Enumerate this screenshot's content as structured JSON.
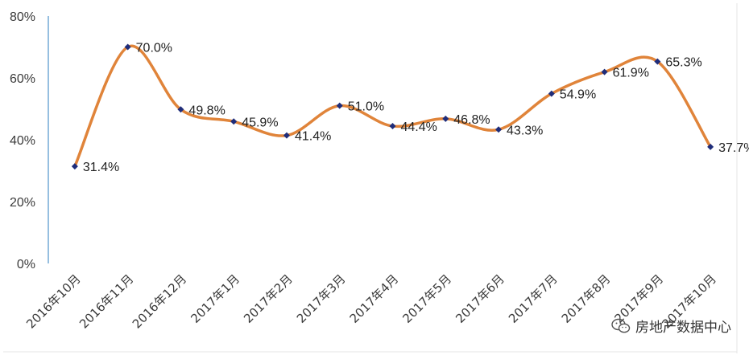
{
  "chart_data": {
    "type": "line",
    "categories": [
      "2016年10月",
      "2016年11月",
      "2016年12月",
      "2017年1月",
      "2017年2月",
      "2017年3月",
      "2017年4月",
      "2017年5月",
      "2017年6月",
      "2017年7月",
      "2017年8月",
      "2017年9月",
      "2017年10月"
    ],
    "values": [
      31.4,
      70.0,
      49.8,
      45.9,
      41.4,
      51.0,
      44.4,
      46.8,
      43.3,
      54.9,
      61.9,
      65.3,
      37.7
    ],
    "data_labels": [
      "31.4%",
      "70.0%",
      "49.8%",
      "45.9%",
      "41.4%",
      "51.0%",
      "44.4%",
      "46.8%",
      "43.3%",
      "54.9%",
      "61.9%",
      "65.3%",
      "37.7%"
    ],
    "y_ticks": [
      0,
      20,
      40,
      60,
      80
    ],
    "y_tick_labels": [
      "0%",
      "20%",
      "40%",
      "60%",
      "80%"
    ],
    "ylim": [
      0,
      80
    ],
    "title": "",
    "xlabel": "",
    "ylabel": "",
    "grid": false,
    "smooth": true,
    "line_color": "#E0843A",
    "marker_color": "#1F2D7A",
    "axis_color": "#2E7FC1"
  },
  "brand": {
    "icon": "wechat-icon",
    "text": "房地产数据中心"
  }
}
